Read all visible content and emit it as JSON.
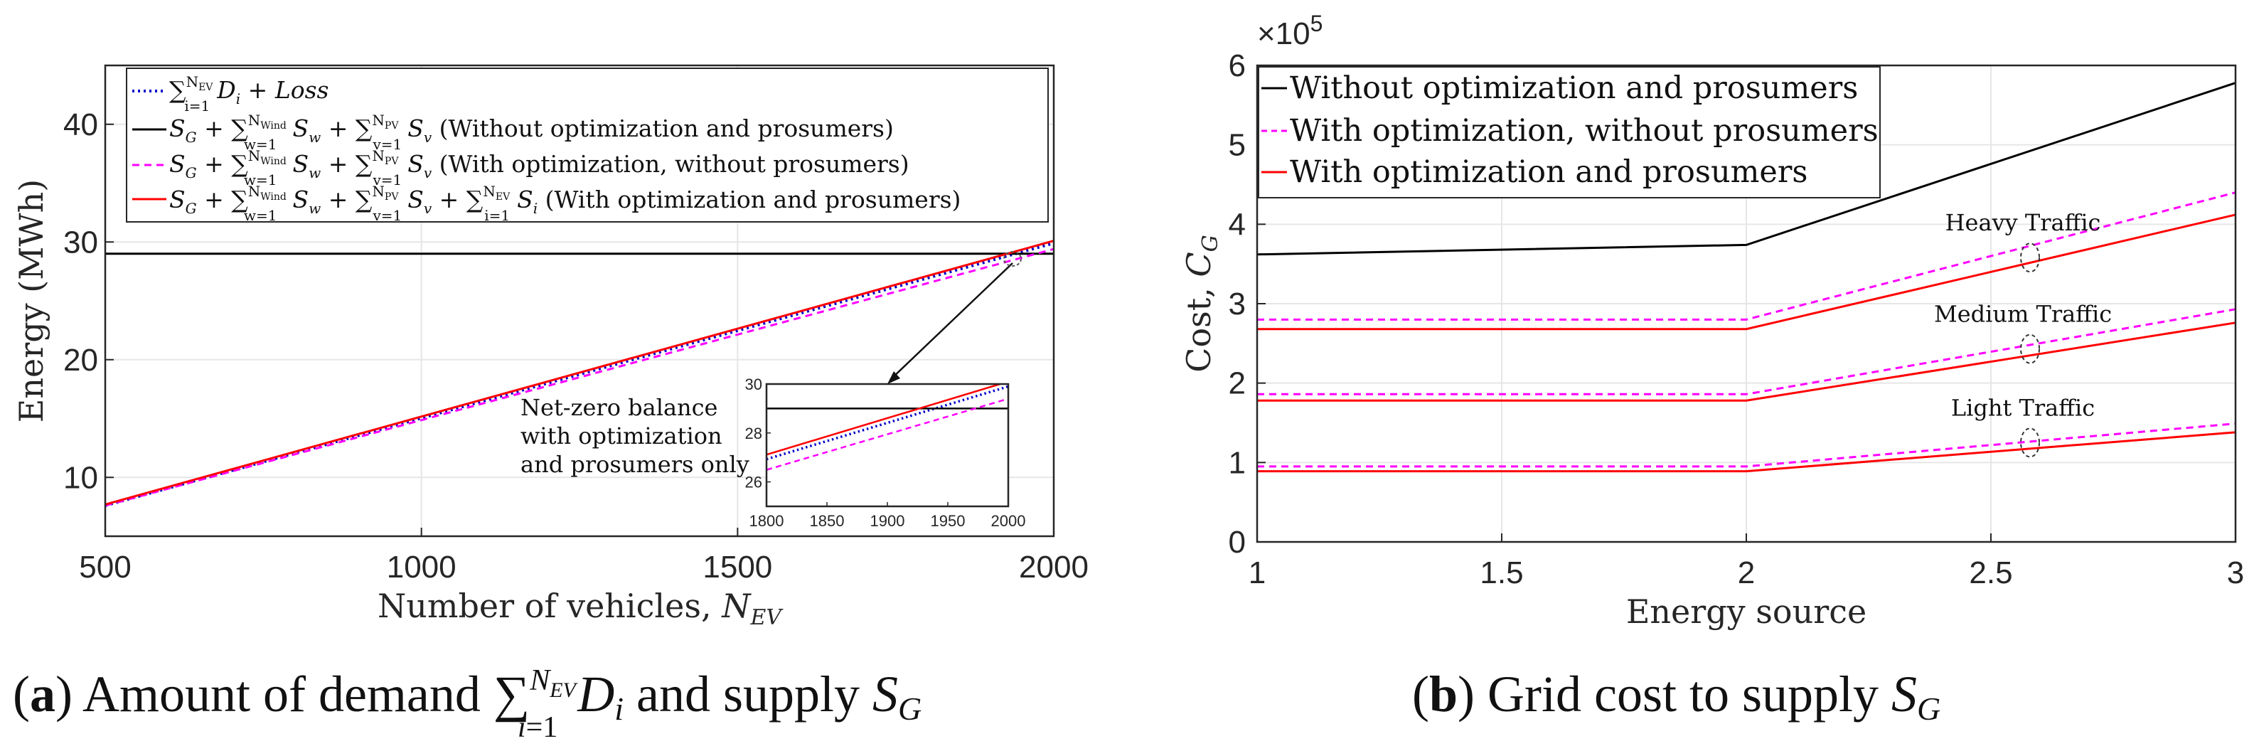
{
  "chart_data": [
    {
      "type": "line",
      "panel": "a",
      "caption_label": "a",
      "caption_text": "Amount of demand ∑_{i=1}^{N_EV} D_i and supply S_G",
      "xlabel": "Number of vehicles, N_EV",
      "ylabel": "Energy (MWh)",
      "xlim": [
        500,
        2000
      ],
      "ylim": [
        5,
        45
      ],
      "xticks": [
        500,
        1000,
        1500,
        2000
      ],
      "yticks": [
        10,
        20,
        30,
        40
      ],
      "grid": true,
      "legend_location": "top-left",
      "series": [
        {
          "name": "∑_{i=1}^{N_EV} D_i + Loss",
          "color": "#0000cc",
          "dash": "dotted",
          "x": [
            500,
            2000
          ],
          "y": [
            7.6,
            29.9
          ]
        },
        {
          "name": "S_G + ∑_{w=1}^{N_Wind} S_w + ∑_{v=1}^{N_PV} S_v (Without optimization and prosumers)",
          "color": "#000000",
          "dash": "solid",
          "x": [
            500,
            2000
          ],
          "y": [
            29.0,
            29.0
          ]
        },
        {
          "name": "S_G + ∑_{w=1}^{N_Wind} S_w + ∑_{v=1}^{N_PV} S_v (With optimization, without prosumers)",
          "color": "#ff00ff",
          "dash": "dashed",
          "x": [
            500,
            2000
          ],
          "y": [
            7.6,
            29.4
          ]
        },
        {
          "name": "S_G + ∑_{w=1}^{N_Wind} S_w + ∑_{v=1}^{N_PV} S_v + ∑_{i=1}^{N_EV} S_i (With optimization and prosumers)",
          "color": "#ff0000",
          "dash": "solid",
          "x": [
            500,
            2000
          ],
          "y": [
            7.7,
            30.1
          ]
        }
      ],
      "inset": {
        "xlim": [
          1800,
          2000
        ],
        "ylim": [
          25,
          30
        ],
        "xticks": [
          1800,
          1850,
          1900,
          1950,
          2000
        ],
        "yticks": [
          26,
          28,
          30
        ],
        "annotation": [
          "Net-zero balance",
          "with optimization",
          "and prosumers only"
        ]
      }
    },
    {
      "type": "line",
      "panel": "b",
      "caption_label": "b",
      "caption_text": "Grid cost to supply S_G",
      "xlabel": "Energy source",
      "ylabel": "Cost, C_G",
      "exponent_label": "×10",
      "exponent_power": "5",
      "xlim": [
        1,
        3
      ],
      "ylim": [
        0,
        6
      ],
      "xticks": [
        "1",
        "1.5",
        "2",
        "2.5",
        "3"
      ],
      "yticks": [
        "0",
        "1",
        "2",
        "3",
        "4",
        "5",
        "6"
      ],
      "grid": true,
      "legend_location": "top-left",
      "legend": [
        {
          "name": "Without optimization and prosumers",
          "color": "#000000",
          "dash": "solid"
        },
        {
          "name": "With optimization, without prosumers",
          "color": "#ff00ff",
          "dash": "dashed"
        },
        {
          "name": "With optimization and prosumers",
          "color": "#ff0000",
          "dash": "solid"
        }
      ],
      "series": [
        {
          "name": "Without optimization and prosumers",
          "color": "#000000",
          "dash": "solid",
          "x": [
            1,
            2,
            3
          ],
          "y": [
            3.62,
            3.74,
            5.78
          ]
        },
        {
          "name": "Heavy - with optimization, without prosumers",
          "color": "#ff00ff",
          "dash": "dashed",
          "x": [
            1,
            2,
            3
          ],
          "y": [
            2.8,
            2.8,
            4.4
          ]
        },
        {
          "name": "Heavy - with optimization and prosumers",
          "color": "#ff0000",
          "dash": "solid",
          "x": [
            1,
            2,
            3
          ],
          "y": [
            2.68,
            2.68,
            4.12
          ]
        },
        {
          "name": "Medium - with optimization, without prosumers",
          "color": "#ff00ff",
          "dash": "dashed",
          "x": [
            1,
            2,
            3
          ],
          "y": [
            1.86,
            1.86,
            2.93
          ]
        },
        {
          "name": "Medium - with optimization and prosumers",
          "color": "#ff0000",
          "dash": "solid",
          "x": [
            1,
            2,
            3
          ],
          "y": [
            1.78,
            1.78,
            2.76
          ]
        },
        {
          "name": "Light - with optimization, without prosumers",
          "color": "#ff00ff",
          "dash": "dashed",
          "x": [
            1,
            2,
            3
          ],
          "y": [
            0.95,
            0.95,
            1.49
          ]
        },
        {
          "name": "Light - with optimization and prosumers",
          "color": "#ff0000",
          "dash": "solid",
          "x": [
            1,
            2,
            3
          ],
          "y": [
            0.89,
            0.89,
            1.38
          ]
        }
      ],
      "annotations": [
        {
          "text": "Heavy Traffic",
          "x": 2.58,
          "y": 3.58
        },
        {
          "text": "Medium Traffic",
          "x": 2.58,
          "y": 2.43
        },
        {
          "text": "Light Traffic",
          "x": 2.58,
          "y": 1.25
        }
      ]
    }
  ]
}
